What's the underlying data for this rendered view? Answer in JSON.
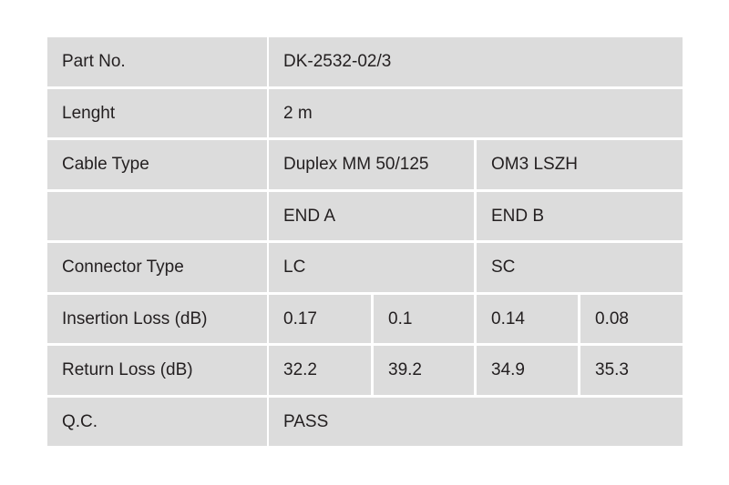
{
  "table": {
    "rows": [
      {
        "label": "Part No.",
        "cells": [
          "DK-2532-02/3"
        ]
      },
      {
        "label": "Lenght",
        "cells": [
          "2 m"
        ]
      },
      {
        "label": "Cable Type",
        "cells": [
          "Duplex MM 50/125",
          "OM3 LSZH"
        ]
      },
      {
        "cells": [
          "END A",
          "END B"
        ]
      },
      {
        "label": "Connector Type",
        "cells": [
          "LC",
          "SC"
        ]
      },
      {
        "label": "Insertion Loss (dB)",
        "cells": [
          "0.17",
          "0.1",
          "0.14",
          "0.08"
        ]
      },
      {
        "label": "Return Loss (dB)",
        "cells": [
          "32.2",
          "39.2",
          "34.9",
          "35.3"
        ]
      },
      {
        "label": "Q.C.",
        "cells": [
          "PASS"
        ]
      }
    ]
  }
}
